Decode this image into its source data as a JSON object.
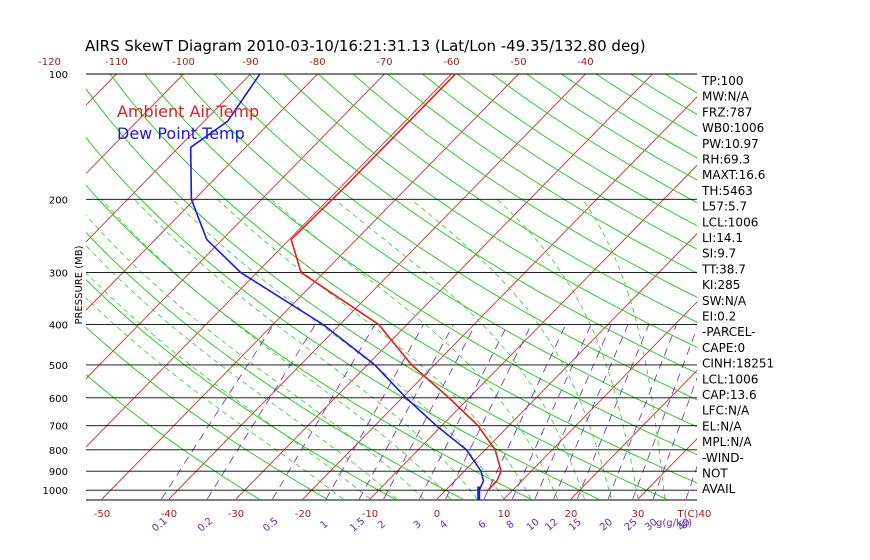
{
  "chart_data": {
    "type": "skewt",
    "title": "AIRS SkewT Diagram 2010-03-10/16:21:31.13 (Lat/Lon -49.35/132.80 deg)",
    "ylabel": "PRESSURE (MB)",
    "xunit_label": "T(C)",
    "mixing_unit_label": "g(g/kg)",
    "pressure_ticks": [
      100,
      200,
      300,
      400,
      500,
      600,
      700,
      800,
      900,
      1000
    ],
    "pressure_range": [
      100,
      1050
    ],
    "bottom_temp_ticks": [
      -50,
      -40,
      -30,
      -20,
      -10,
      0,
      10,
      20,
      30,
      40
    ],
    "top_temp_ticks": [
      -120,
      -110,
      -100,
      -90,
      -80,
      -70,
      -60,
      -50,
      -40
    ],
    "mixing_ratio_ticks": [
      "0.1",
      "0.2",
      "0.5",
      "1",
      "1.5",
      "2",
      "3",
      "4",
      "6",
      "8",
      "10",
      "12",
      "15",
      "20",
      "25",
      "30",
      "40"
    ],
    "legend": [
      {
        "label": "Ambient Air Temp",
        "color": "#e02020"
      },
      {
        "label": "Dew Point Temp",
        "color": "#1a1adc"
      }
    ],
    "series": [
      {
        "name": "Ambient Air Temp",
        "color": "#e02020",
        "points": [
          {
            "p": 100,
            "t": -59.4
          },
          {
            "p": 150,
            "t": -59.4
          },
          {
            "p": 190,
            "t": -59.4
          },
          {
            "p": 250,
            "t": -59.7
          },
          {
            "p": 300,
            "t": -53.4
          },
          {
            "p": 400,
            "t": -34.2
          },
          {
            "p": 500,
            "t": -23.4
          },
          {
            "p": 600,
            "t": -13.0
          },
          {
            "p": 700,
            "t": -4.6
          },
          {
            "p": 800,
            "t": 1.5
          },
          {
            "p": 900,
            "t": 5.5
          },
          {
            "p": 950,
            "t": 6.3
          },
          {
            "p": 1006,
            "t": 6.3
          }
        ]
      },
      {
        "name": "Dew Point Temp",
        "color": "#1a1adc",
        "points": [
          {
            "p": 100,
            "t": -88.6
          },
          {
            "p": 130,
            "t": -86.5
          },
          {
            "p": 150,
            "t": -88.2
          },
          {
            "p": 200,
            "t": -80.5
          },
          {
            "p": 250,
            "t": -72.3
          },
          {
            "p": 300,
            "t": -62.4
          },
          {
            "p": 400,
            "t": -42.5
          },
          {
            "p": 500,
            "t": -28.9
          },
          {
            "p": 600,
            "t": -19.4
          },
          {
            "p": 700,
            "t": -10.8
          },
          {
            "p": 800,
            "t": -2.8
          },
          {
            "p": 900,
            "t": 2.5
          },
          {
            "p": 950,
            "t": 4.3
          },
          {
            "p": 1006,
            "t": 5.1
          }
        ]
      }
    ]
  },
  "indices": [
    "TP:100",
    "MW:N/A",
    "FRZ:787",
    "WB0:1006",
    "PW:10.97",
    "RH:69.3",
    "MAXT:16.6",
    "TH:5463",
    "L57:5.7",
    "LCL:1006",
    "LI:14.1",
    "SI:9.7",
    "TT:38.7",
    "KI:285",
    "SW:N/A",
    "EI:0.2",
    "-PARCEL-",
    "CAPE:0",
    "CINH:18251",
    "LCL:1006",
    "CAP:13.6",
    "LFC:N/A",
    "EL:N/A",
    "MPL:N/A",
    "-WIND-",
    "NOT",
    "AVAIL"
  ]
}
